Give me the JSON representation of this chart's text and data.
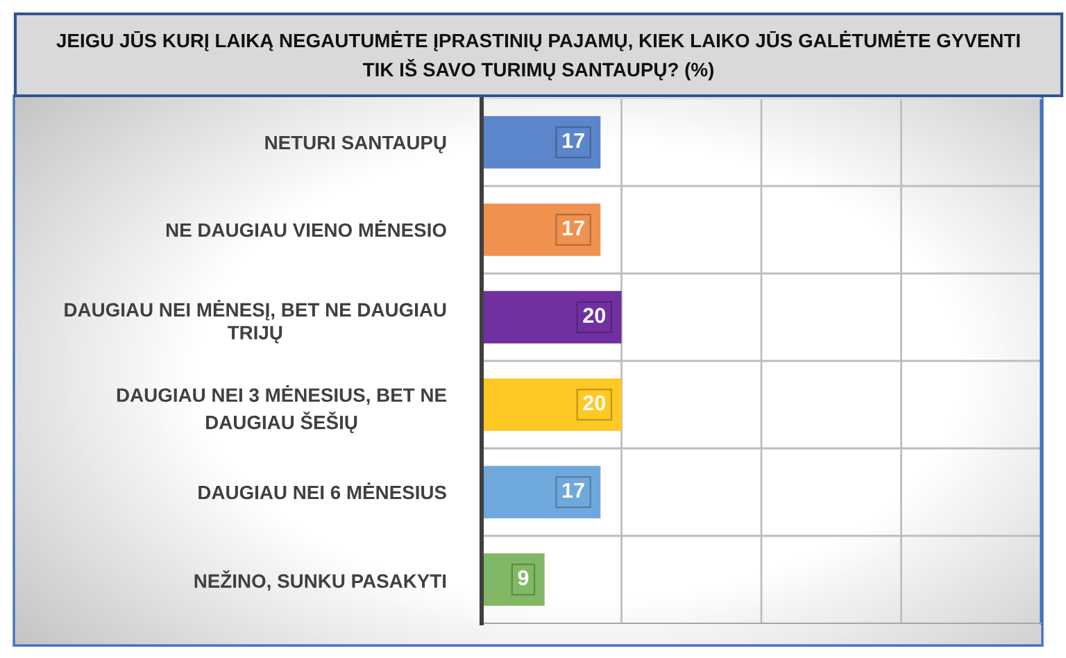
{
  "chart_data": {
    "type": "bar",
    "orientation": "horizontal",
    "title": "JEIGU JŪS KURĮ LAIKĄ NEGAUTUMĖTE ĮPRASTINIŲ PAJAMŲ, KIEK LAIKO JŪS GALĖTUMĖTE GYVENTI\nTIK IŠ SAVO TURIMŲ SANTAUPŲ? (%)",
    "categories": [
      "NETURI SANTAUPŲ",
      "NE DAUGIAU VIENO MĖNESIO",
      "DAUGIAU NEI MĖNESĮ, BET NE DAUGIAU\nTRIJŲ",
      "DAUGIAU NEI 3 MĖNESIUS, BET NE\nDAUGIAU ŠEŠIŲ",
      "DAUGIAU NEI 6 MĖNESIUS",
      "NEŽINO, SUNKU PASAKYTI"
    ],
    "values": [
      17,
      17,
      20,
      20,
      17,
      9
    ],
    "colors": [
      "#5b86cc",
      "#f09150",
      "#7030a0",
      "#ffc823",
      "#6fa8dc",
      "#81b866"
    ],
    "xlim": [
      0,
      80
    ],
    "xticks": [
      {
        "value": 0,
        "label": null
      },
      {
        "value": 20,
        "label": null
      },
      {
        "value": 40,
        "label": null
      },
      {
        "value": 60,
        "label": null
      },
      {
        "value": 80,
        "label": null
      }
    ],
    "grid": true,
    "data_labels": true,
    "tick_labels": "y"
  }
}
